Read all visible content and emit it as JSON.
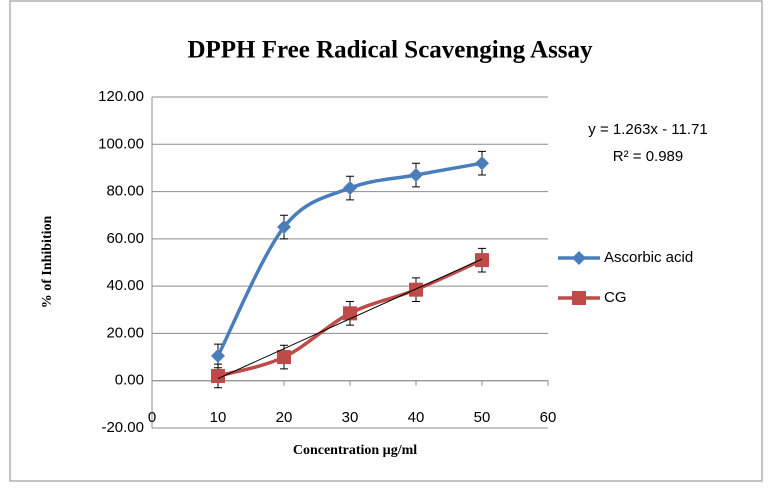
{
  "chart_data": {
    "type": "line",
    "title": "DPPH Free Radical Scavenging Assay",
    "x_label": "Concentration µg/ml",
    "y_label": "% of Inhibition",
    "x": [
      10,
      20,
      30,
      40,
      50
    ],
    "series": [
      {
        "name": "Ascorbic acid",
        "color": "#4a7ebb",
        "marker": "diamond",
        "values": [
          10.5,
          65,
          81.5,
          87,
          92
        ],
        "errors": [
          5,
          5,
          5,
          5,
          5
        ]
      },
      {
        "name": "CG",
        "color": "#be4b48",
        "marker": "square",
        "values": [
          2,
          10,
          28.5,
          38.5,
          51
        ],
        "errors": [
          5,
          5,
          5,
          5,
          5
        ]
      }
    ],
    "trendline": {
      "slope": 1.263,
      "intercept": -11.71
    },
    "annotations": [
      "y = 1.263x - 11.71",
      "R² = 0.989"
    ],
    "xlim": [
      0,
      60
    ],
    "xticks": [
      0,
      10,
      20,
      30,
      40,
      50,
      60
    ],
    "ylim": [
      -20,
      120
    ],
    "yticks": [
      {
        "value": -20,
        "label": "-20.00"
      },
      {
        "value": 0,
        "label": "0.00"
      },
      {
        "value": 20,
        "label": "20.00"
      },
      {
        "value": 40,
        "label": "40.00"
      },
      {
        "value": 60,
        "label": "60.00"
      },
      {
        "value": 80,
        "label": "80.00"
      },
      {
        "value": 100,
        "label": "100.00"
      },
      {
        "value": 120,
        "label": "120.00"
      }
    ],
    "grid": true,
    "legend": "right"
  }
}
